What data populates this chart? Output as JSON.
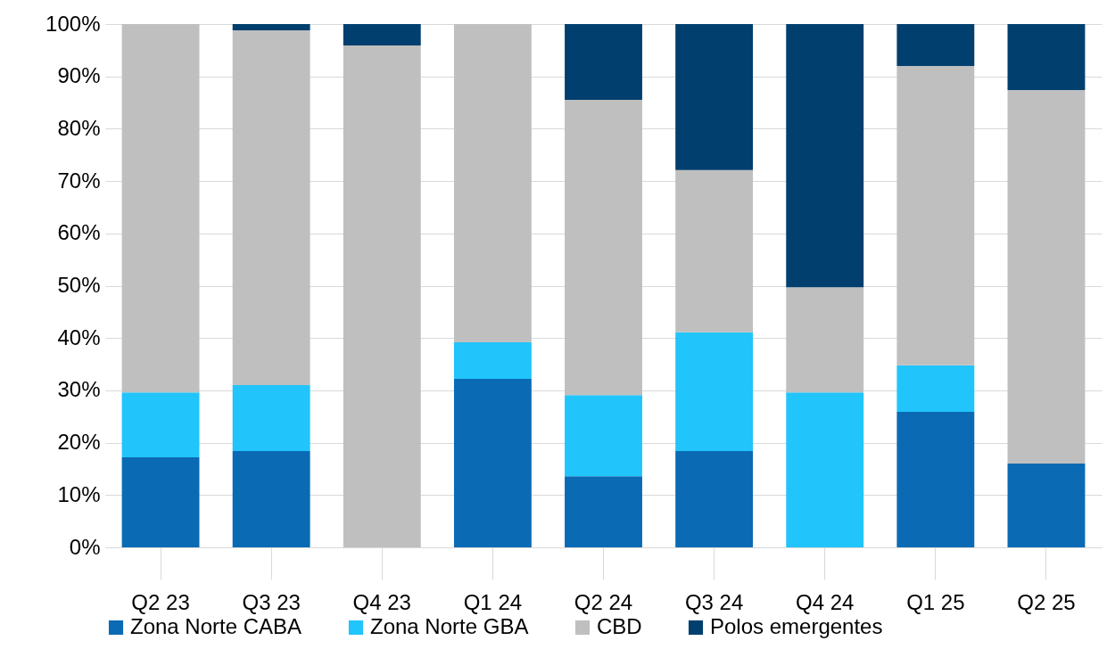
{
  "chart_data": {
    "type": "bar",
    "stacked": true,
    "categories": [
      "Q2 23",
      "Q3 23",
      "Q4 23",
      "Q1 24",
      "Q2 24",
      "Q3 24",
      "Q4 24",
      "Q1 25",
      "Q2 25"
    ],
    "series": [
      {
        "name": "Zona Norte CABA",
        "color": "#0a6ab4",
        "values": [
          17.2,
          18.4,
          0,
          32.2,
          13.6,
          18.4,
          0,
          25.9,
          16.0
        ]
      },
      {
        "name": "Zona Norte GBA",
        "color": "#21c4fb",
        "values": [
          12.4,
          12.6,
          0,
          7.0,
          15.5,
          22.7,
          29.6,
          8.9,
          0
        ]
      },
      {
        "name": "CBD",
        "color": "#bfbfbf",
        "values": [
          70.4,
          67.8,
          95.9,
          60.8,
          56.4,
          31.0,
          20.1,
          57.2,
          71.4
        ]
      },
      {
        "name": "Polos emergentes",
        "color": "#003f6e",
        "values": [
          0,
          1.2,
          4.1,
          0,
          14.5,
          27.9,
          50.3,
          8.0,
          12.6
        ]
      }
    ],
    "ylim": [
      0,
      100
    ],
    "yticks": [
      {
        "value": 0,
        "label": "0%"
      },
      {
        "value": 10,
        "label": "10%"
      },
      {
        "value": 20,
        "label": "20%"
      },
      {
        "value": 30,
        "label": "30%"
      },
      {
        "value": 40,
        "label": "40%"
      },
      {
        "value": 50,
        "label": "50%"
      },
      {
        "value": 60,
        "label": "60%"
      },
      {
        "value": 70,
        "label": "70%"
      },
      {
        "value": 80,
        "label": "80%"
      },
      {
        "value": 90,
        "label": "90%"
      },
      {
        "value": 100,
        "label": "100%"
      }
    ],
    "grid": "y",
    "legend": "bottom"
  }
}
